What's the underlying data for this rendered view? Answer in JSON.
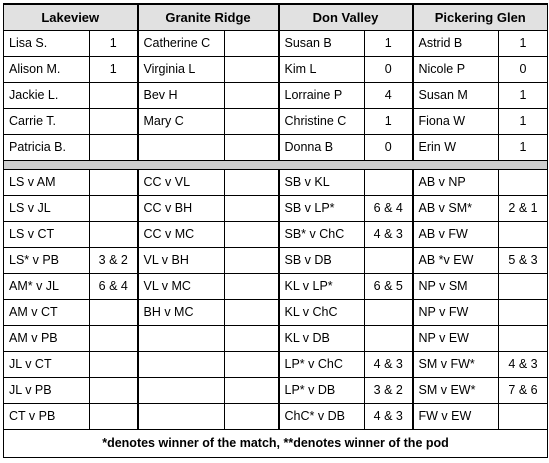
{
  "pods": [
    {
      "name": "Lakeview",
      "players": [
        {
          "name": "Lisa S.",
          "wins": "1"
        },
        {
          "name": "Alison M.",
          "wins": "1"
        },
        {
          "name": "Jackie L.",
          "wins": ""
        },
        {
          "name": "Carrie T.",
          "wins": ""
        },
        {
          "name": "Patricia B.",
          "wins": ""
        }
      ],
      "matches": [
        {
          "pair": "LS v AM",
          "score": ""
        },
        {
          "pair": "LS v JL",
          "score": ""
        },
        {
          "pair": "LS v CT",
          "score": ""
        },
        {
          "pair": "LS* v PB",
          "score": "3 & 2"
        },
        {
          "pair": "AM* v JL",
          "score": "6 & 4"
        },
        {
          "pair": "AM v CT",
          "score": ""
        },
        {
          "pair": "AM v PB",
          "score": ""
        },
        {
          "pair": "JL v CT",
          "score": ""
        },
        {
          "pair": "JL v PB",
          "score": ""
        },
        {
          "pair": "CT v PB",
          "score": ""
        }
      ]
    },
    {
      "name": "Granite Ridge",
      "players": [
        {
          "name": "Catherine C",
          "wins": ""
        },
        {
          "name": "Virginia L",
          "wins": ""
        },
        {
          "name": "Bev H",
          "wins": ""
        },
        {
          "name": "Mary C",
          "wins": ""
        },
        {
          "name": "",
          "wins": ""
        }
      ],
      "matches": [
        {
          "pair": "CC v VL",
          "score": ""
        },
        {
          "pair": "CC v BH",
          "score": ""
        },
        {
          "pair": "CC v MC",
          "score": ""
        },
        {
          "pair": "VL v BH",
          "score": ""
        },
        {
          "pair": "VL v MC",
          "score": ""
        },
        {
          "pair": "BH v MC",
          "score": ""
        },
        {
          "pair": "",
          "score": ""
        },
        {
          "pair": "",
          "score": ""
        },
        {
          "pair": "",
          "score": ""
        },
        {
          "pair": "",
          "score": ""
        }
      ]
    },
    {
      "name": "Don Valley",
      "players": [
        {
          "name": "Susan B",
          "wins": "1"
        },
        {
          "name": "Kim L",
          "wins": "0"
        },
        {
          "name": "Lorraine P",
          "wins": "4"
        },
        {
          "name": "Christine C",
          "wins": "1"
        },
        {
          "name": "Donna B",
          "wins": "0"
        }
      ],
      "matches": [
        {
          "pair": "SB v KL",
          "score": ""
        },
        {
          "pair": "SB v LP*",
          "score": "6 & 4"
        },
        {
          "pair": "SB* v ChC",
          "score": "4 & 3"
        },
        {
          "pair": "SB v DB",
          "score": ""
        },
        {
          "pair": "KL v LP*",
          "score": "6 & 5"
        },
        {
          "pair": "KL v ChC",
          "score": ""
        },
        {
          "pair": "KL v DB",
          "score": ""
        },
        {
          "pair": "LP* v ChC",
          "score": "4 & 3"
        },
        {
          "pair": "LP* v DB",
          "score": "3 & 2"
        },
        {
          "pair": "ChC* v DB",
          "score": "4 & 3"
        }
      ]
    },
    {
      "name": "Pickering Glen",
      "players": [
        {
          "name": "Astrid B",
          "wins": "1"
        },
        {
          "name": "Nicole P",
          "wins": "0"
        },
        {
          "name": "Susan M",
          "wins": "1"
        },
        {
          "name": "Fiona W",
          "wins": "1"
        },
        {
          "name": "Erin W",
          "wins": "1"
        }
      ],
      "matches": [
        {
          "pair": "AB v NP",
          "score": ""
        },
        {
          "pair": "AB v SM*",
          "score": "2 & 1"
        },
        {
          "pair": "AB v FW",
          "score": ""
        },
        {
          "pair": "AB *v EW",
          "score": "5 & 3"
        },
        {
          "pair": "NP v SM",
          "score": ""
        },
        {
          "pair": "NP v FW",
          "score": ""
        },
        {
          "pair": "NP v EW",
          "score": ""
        },
        {
          "pair": "SM v FW*",
          "score": "4 & 3"
        },
        {
          "pair": "SM v EW*",
          "score": "7 & 6"
        },
        {
          "pair": "FW v EW",
          "score": ""
        }
      ]
    }
  ],
  "footer": "*denotes winner of the match,     **denotes winner of the pod"
}
